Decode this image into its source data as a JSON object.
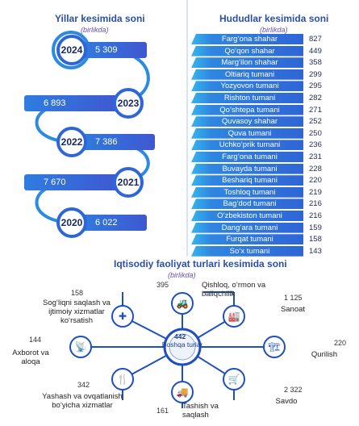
{
  "sections": {
    "years_title": "Yillar kesimida soni",
    "years_subtitle": "(birlikda)",
    "regions_title": "Hududlar kesimida soni",
    "regions_subtitle": "(birlikda)",
    "activities_title": "Iqtisodiy faoliyat turlari kesimida soni",
    "activities_subtitle": "(birlikda)"
  },
  "chart_data": [
    {
      "type": "bar",
      "title": "Yillar kesimida soni",
      "subtitle": "(birlikda)",
      "categories": [
        "2024",
        "2023",
        "2022",
        "2021",
        "2020"
      ],
      "values": [
        5309,
        6893,
        7386,
        7670,
        6022
      ],
      "labels": [
        "5 309",
        "6 893",
        "7 386",
        "7 670",
        "6 022"
      ]
    },
    {
      "type": "bar",
      "title": "Hududlar kesimida soni",
      "subtitle": "(birlikda)",
      "categories": [
        "Farg‘ona shahar",
        "Qo‘qon shahar",
        "Marg‘ilon shahar",
        "Oltiariq tumani",
        "Yozyovon tumani",
        "Rishton tumani",
        "Qo‘shtepa tumani",
        "Quvasoy shahar",
        "Quva tumani",
        "Uchko‘prik tumani",
        "Farg‘ona tumani",
        "Buvayda tumani",
        "Beshariq tumani",
        "Toshloq tumani",
        "Bag‘dod tumani",
        "O‘zbekiston tumani",
        "Dang‘ara tumani",
        "Furqat tumani",
        "So‘x tumani"
      ],
      "values": [
        827,
        449,
        358,
        299,
        295,
        282,
        271,
        252,
        250,
        236,
        231,
        228,
        220,
        219,
        216,
        216,
        159,
        158,
        143
      ]
    },
    {
      "type": "other",
      "title": "Iqtisodiy faoliyat turlari kesimida soni",
      "subtitle": "(birlikda)",
      "center": {
        "label": "Boshqa turlar",
        "value": 442
      },
      "items": [
        {
          "label": "Qishloq, o‘rmon va baliqchilik",
          "value": 395,
          "icon": "tractor-icon"
        },
        {
          "label": "Sanoat",
          "value": "1 125",
          "icon": "factory-icon"
        },
        {
          "label": "Qurilish",
          "value": 220,
          "icon": "crane-icon"
        },
        {
          "label": "Savdo",
          "value": "2 322",
          "icon": "cart-icon"
        },
        {
          "label": "Tashish va saqlash",
          "value": 161,
          "icon": "truck-icon"
        },
        {
          "label": "Yashash va ovqatlanish bo‘yicha xizmatlar",
          "value": 342,
          "icon": "dining-icon"
        },
        {
          "label": "Axborot va aloqa",
          "value": 144,
          "icon": "antenna-icon"
        },
        {
          "label": "Sog‘liqni saqlash va ijtimoiy xizmatlar ko‘rsatish",
          "value": 158,
          "icon": "medical-icon"
        }
      ]
    }
  ],
  "colors": {
    "primary_blue": "#2e66d8",
    "light_blue": "#36b4ee",
    "accent_purple": "#7a2bb0",
    "dark_navy": "#1d4fbf"
  }
}
